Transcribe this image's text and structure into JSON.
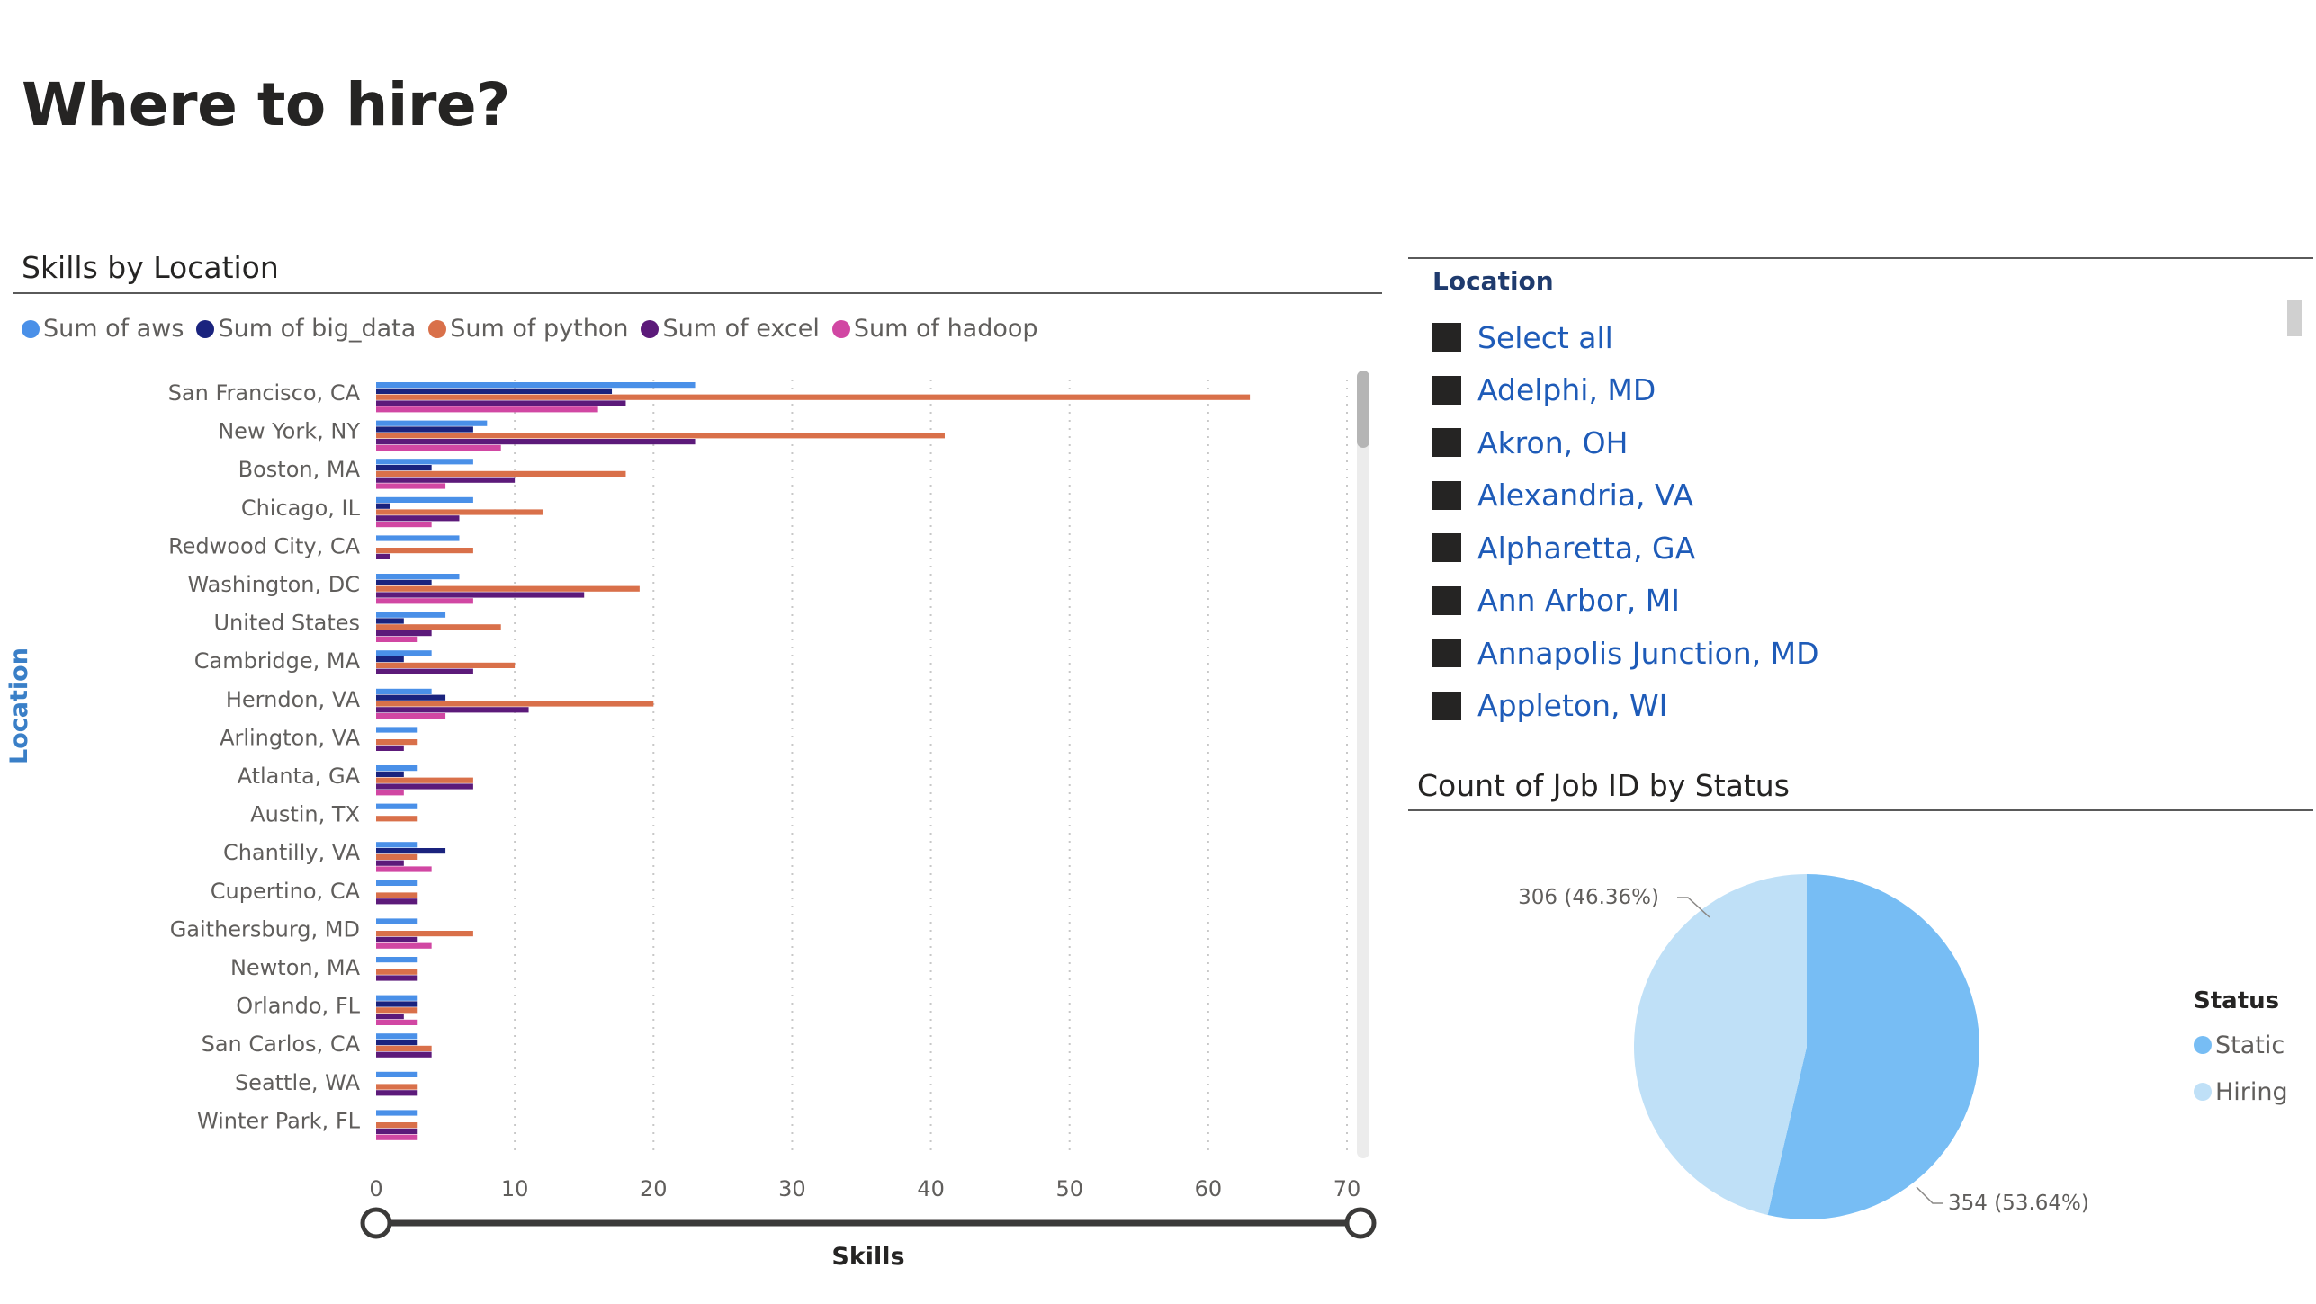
{
  "page": {
    "title": "Where to hire?"
  },
  "bar_visual": {
    "title": "Skills by Location"
  },
  "slicer": {
    "title": "Location",
    "items": [
      "Select all",
      "Adelphi, MD",
      "Akron, OH",
      "Alexandria, VA",
      "Alpharetta, GA",
      "Ann Arbor, MI",
      "Annapolis Junction, MD",
      "Appleton, WI"
    ]
  },
  "pie_visual": {
    "title": "Count of Job ID by Status"
  },
  "chart_data": [
    {
      "type": "bar",
      "orientation": "horizontal",
      "title": "Skills by Location",
      "xlabel": "Skills",
      "ylabel": "Location",
      "xlim": [
        0,
        70
      ],
      "xticks": [
        0,
        10,
        20,
        30,
        40,
        50,
        60,
        70
      ],
      "grid": true,
      "legend_position": "top-left",
      "categories": [
        "San Francisco, CA",
        "New York, NY",
        "Boston, MA",
        "Chicago, IL",
        "Redwood City, CA",
        "Washington, DC",
        "United States",
        "Cambridge, MA",
        "Herndon, VA",
        "Arlington, VA",
        "Atlanta, GA",
        "Austin, TX",
        "Chantilly, VA",
        "Cupertino, CA",
        "Gaithersburg, MD",
        "Newton, MA",
        "Orlando, FL",
        "San Carlos, CA",
        "Seattle, WA",
        "Winter Park, FL"
      ],
      "series": [
        {
          "name": "Sum of aws",
          "color": "#4a90e8",
          "values": [
            23,
            8,
            7,
            7,
            6,
            6,
            5,
            4,
            4,
            3,
            3,
            3,
            3,
            3,
            3,
            3,
            3,
            3,
            3,
            3
          ]
        },
        {
          "name": "Sum of big_data",
          "color": "#1a237e",
          "values": [
            17,
            7,
            4,
            1,
            0,
            4,
            2,
            2,
            5,
            0,
            2,
            0,
            5,
            0,
            0,
            0,
            3,
            3,
            0,
            0
          ]
        },
        {
          "name": "Sum of python",
          "color": "#d9704a",
          "values": [
            63,
            41,
            18,
            12,
            7,
            19,
            9,
            10,
            20,
            3,
            7,
            3,
            3,
            3,
            7,
            3,
            3,
            4,
            3,
            3
          ]
        },
        {
          "name": "Sum of excel",
          "color": "#5c1a7a",
          "values": [
            18,
            23,
            10,
            6,
            1,
            15,
            4,
            7,
            11,
            2,
            7,
            0,
            2,
            3,
            3,
            3,
            2,
            4,
            3,
            3
          ]
        },
        {
          "name": "Sum of hadoop",
          "color": "#d147a3",
          "values": [
            16,
            9,
            5,
            4,
            0,
            7,
            3,
            0,
            5,
            0,
            2,
            0,
            4,
            0,
            4,
            0,
            3,
            0,
            0,
            3
          ]
        }
      ]
    },
    {
      "type": "pie",
      "title": "Count of Job ID by Status",
      "legend_title": "Status",
      "legend_position": "right",
      "slices": [
        {
          "name": "Static",
          "value": 354,
          "label": "354 (53.64%)",
          "color": "#77bdf4"
        },
        {
          "name": "Hiring",
          "value": 306,
          "label": "306 (46.36%)",
          "color": "#bfe0f7"
        }
      ]
    }
  ]
}
